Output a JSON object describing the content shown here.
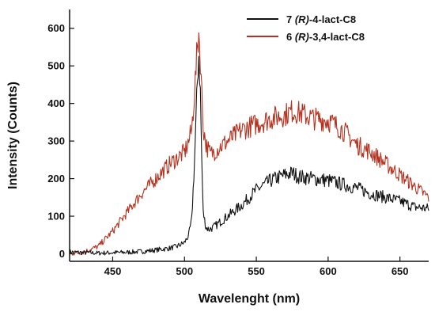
{
  "chart_data": {
    "type": "line",
    "xlabel": "Wavelenght (nm)",
    "ylabel": "Intensity (Counts)",
    "xlim": [
      420,
      670
    ],
    "ylim": [
      -20,
      650
    ],
    "xticks": [
      450,
      500,
      550,
      600,
      650
    ],
    "yticks": [
      0,
      100,
      200,
      300,
      400,
      500,
      600
    ],
    "grid": false,
    "legend_position": "top-right",
    "legend": [
      {
        "num": "7",
        "italic": "(R)",
        "rest": "-4-lact-C8"
      },
      {
        "num": "6",
        "italic": "(R)",
        "rest": "-3,4-lact-C8"
      }
    ],
    "series": [
      {
        "name": "7 (R)-4-lact-C8",
        "color": "#111111",
        "x": [
          420,
          430,
          440,
          450,
          460,
          470,
          480,
          490,
          495,
          500,
          503,
          505,
          507,
          509,
          510,
          511,
          512,
          513,
          515,
          517,
          520,
          525,
          530,
          540,
          550,
          560,
          570,
          575,
          580,
          590,
          600,
          610,
          620,
          630,
          640,
          650,
          660,
          670
        ],
        "y": [
          5,
          3,
          2,
          3,
          4,
          6,
          10,
          15,
          20,
          30,
          50,
          90,
          250,
          460,
          530,
          430,
          250,
          110,
          70,
          65,
          70,
          85,
          100,
          130,
          170,
          195,
          210,
          215,
          205,
          200,
          195,
          185,
          175,
          160,
          150,
          140,
          125,
          120
        ]
      },
      {
        "name": "6 (R)-3,4-lact-C8",
        "color": "#b5311e",
        "x": [
          420,
          430,
          440,
          450,
          460,
          470,
          480,
          490,
          495,
          500,
          503,
          505,
          507,
          509,
          510,
          511,
          512,
          513,
          515,
          518,
          520,
          530,
          540,
          550,
          560,
          570,
          575,
          580,
          590,
          600,
          610,
          620,
          630,
          640,
          650,
          660,
          670
        ],
        "y": [
          0,
          5,
          20,
          60,
          110,
          160,
          200,
          240,
          255,
          270,
          300,
          330,
          430,
          550,
          590,
          520,
          430,
          340,
          290,
          265,
          270,
          300,
          330,
          345,
          360,
          370,
          380,
          375,
          360,
          355,
          330,
          290,
          270,
          240,
          210,
          180,
          150
        ]
      }
    ]
  }
}
